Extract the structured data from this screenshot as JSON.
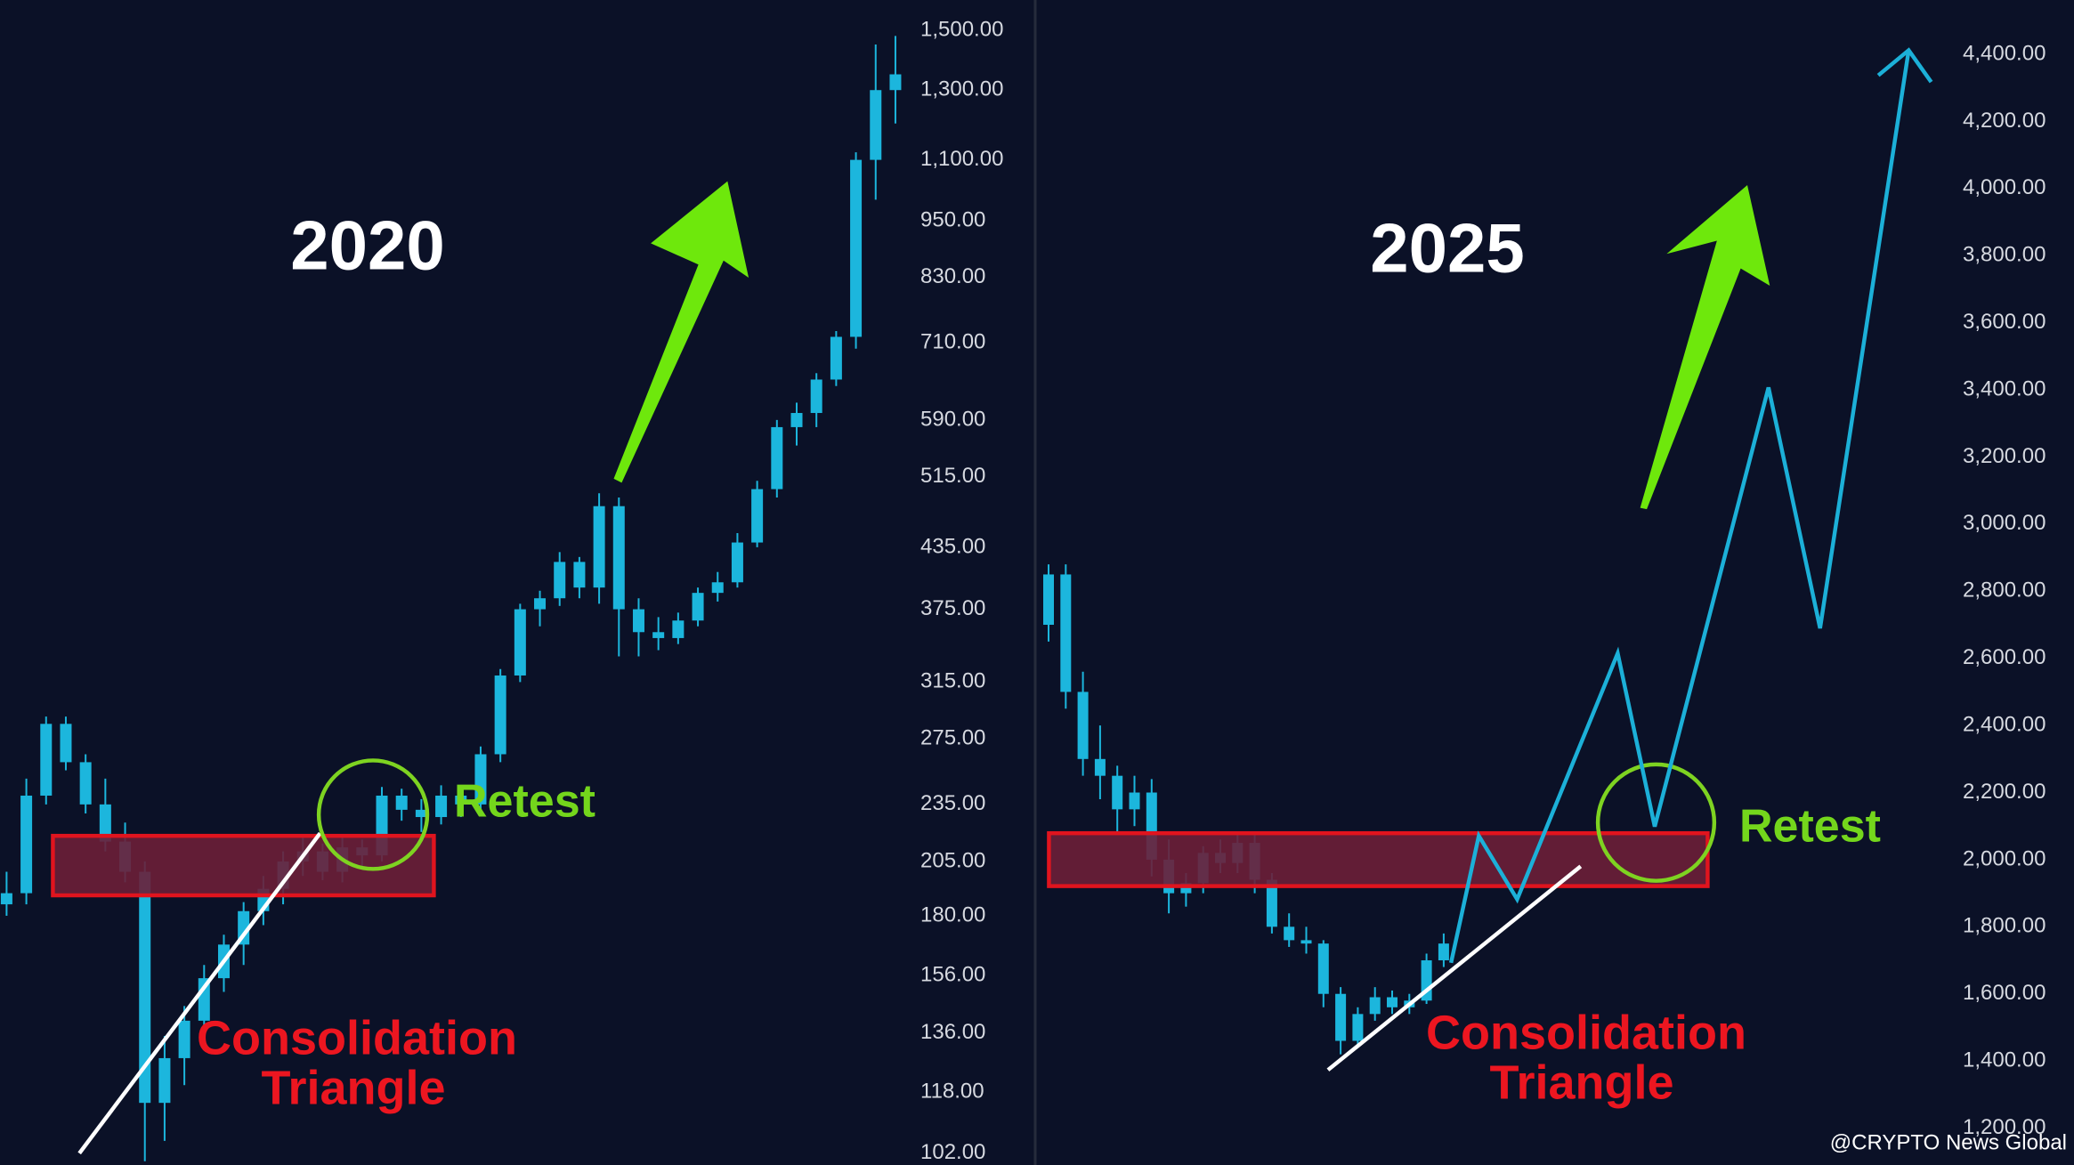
{
  "chart_data": [
    {
      "type": "candlestick",
      "title": "2020",
      "log_scale": true,
      "color": "#1cb6dd",
      "ylim": [
        99.1,
        1613
      ],
      "yticks": [
        {
          "value": 1500,
          "label": "1,500.00"
        },
        {
          "value": 1300,
          "label": "1,300.00"
        },
        {
          "value": 1100,
          "label": "1,100.00"
        },
        {
          "value": 950,
          "label": "950.00"
        },
        {
          "value": 830,
          "label": "830.00"
        },
        {
          "value": 710,
          "label": "710.00"
        },
        {
          "value": 590,
          "label": "590.00"
        },
        {
          "value": 515,
          "label": "515.00"
        },
        {
          "value": 435,
          "label": "435.00"
        },
        {
          "value": 375,
          "label": "375.00"
        },
        {
          "value": 315,
          "label": "315.00"
        },
        {
          "value": 275,
          "label": "275.00"
        },
        {
          "value": 235,
          "label": "235.00"
        },
        {
          "value": 205,
          "label": "205.00"
        },
        {
          "value": 180,
          "label": "180.00"
        },
        {
          "value": 156,
          "label": "156.00"
        },
        {
          "value": 136,
          "label": "136.00"
        },
        {
          "value": 118,
          "label": "118.00"
        },
        {
          "value": 102,
          "label": "102.00"
        }
      ],
      "open": [
        185,
        190,
        240,
        285,
        260,
        235,
        215,
        200,
        115,
        128,
        140,
        155,
        168,
        182,
        192,
        205,
        210,
        200,
        212,
        208,
        240,
        232,
        228,
        240,
        235,
        265,
        320,
        375,
        385,
        420,
        395,
        480,
        375,
        355,
        350,
        365,
        390,
        400,
        440,
        500,
        580,
        600,
        650,
        720,
        1100,
        1300
      ],
      "high": [
        200,
        250,
        290,
        290,
        265,
        250,
        225,
        205,
        135,
        145,
        160,
        172,
        186,
        198,
        210,
        218,
        214,
        218,
        216,
        245,
        244,
        238,
        246,
        244,
        270,
        325,
        380,
        392,
        430,
        425,
        495,
        490,
        385,
        368,
        372,
        395,
        410,
        450,
        510,
        590,
        615,
        660,
        730,
        1120,
        1450,
        1480
      ],
      "low": [
        180,
        185,
        235,
        255,
        230,
        210,
        195,
        100,
        105,
        120,
        135,
        150,
        160,
        176,
        185,
        198,
        196,
        195,
        202,
        205,
        226,
        220,
        224,
        228,
        232,
        260,
        315,
        360,
        378,
        385,
        380,
        335,
        335,
        340,
        345,
        360,
        382,
        395,
        435,
        490,
        555,
        580,
        640,
        700,
        1000,
        1200
      ],
      "close": [
        190,
        240,
        285,
        260,
        235,
        215,
        200,
        115,
        128,
        140,
        155,
        168,
        182,
        192,
        205,
        210,
        200,
        212,
        208,
        240,
        232,
        228,
        240,
        235,
        265,
        320,
        375,
        385,
        420,
        395,
        480,
        375,
        355,
        350,
        365,
        390,
        400,
        440,
        500,
        580,
        600,
        650,
        720,
        1100,
        1300,
        1350
      ],
      "annotations": [
        "Retest",
        "Consolidation",
        "Triangle"
      ]
    },
    {
      "type": "candlestick",
      "title": "2025",
      "log_scale": false,
      "color": "#1cb6dd",
      "ylim": [
        1090,
        4562
      ],
      "yticks": [
        {
          "value": 4400,
          "label": "4,400.00"
        },
        {
          "value": 4200,
          "label": "4,200.00"
        },
        {
          "value": 4000,
          "label": "4,000.00"
        },
        {
          "value": 3800,
          "label": "3,800.00"
        },
        {
          "value": 3600,
          "label": "3,600.00"
        },
        {
          "value": 3400,
          "label": "3,400.00"
        },
        {
          "value": 3200,
          "label": "3,200.00"
        },
        {
          "value": 3000,
          "label": "3,000.00"
        },
        {
          "value": 2800,
          "label": "2,800.00"
        },
        {
          "value": 2600,
          "label": "2,600.00"
        },
        {
          "value": 2400,
          "label": "2,400.00"
        },
        {
          "value": 2200,
          "label": "2,200.00"
        },
        {
          "value": 2000,
          "label": "2,000.00"
        },
        {
          "value": 1800,
          "label": "1,800.00"
        },
        {
          "value": 1600,
          "label": "1,600.00"
        },
        {
          "value": 1400,
          "label": "1,400.00"
        },
        {
          "value": 1200,
          "label": "1,200.00"
        }
      ],
      "open": [
        2700,
        2850,
        2500,
        2300,
        2250,
        2150,
        2200,
        2000,
        1900,
        1930,
        2020,
        1990,
        2050,
        1940,
        1800,
        1760,
        1750,
        1600,
        1460,
        1540,
        1590,
        1560,
        1580,
        1700
      ],
      "high": [
        2880,
        2880,
        2560,
        2400,
        2280,
        2250,
        2240,
        2060,
        1960,
        2040,
        2060,
        2080,
        2080,
        1960,
        1840,
        1800,
        1760,
        1620,
        1560,
        1620,
        1610,
        1600,
        1720,
        1780
      ],
      "low": [
        2650,
        2450,
        2250,
        2180,
        2080,
        2100,
        1950,
        1840,
        1860,
        1900,
        1960,
        1960,
        1900,
        1780,
        1740,
        1720,
        1560,
        1420,
        1440,
        1520,
        1540,
        1540,
        1570,
        1680
      ],
      "close": [
        2850,
        2500,
        2300,
        2250,
        2150,
        2200,
        2000,
        1900,
        1930,
        2020,
        1990,
        2050,
        1940,
        1800,
        1760,
        1750,
        1600,
        1460,
        1540,
        1590,
        1560,
        1580,
        1700,
        1750
      ],
      "annotations": [
        "Retest",
        "Consolidation",
        "Triangle"
      ]
    }
  ],
  "watermark": "@CRYPTO News Global"
}
